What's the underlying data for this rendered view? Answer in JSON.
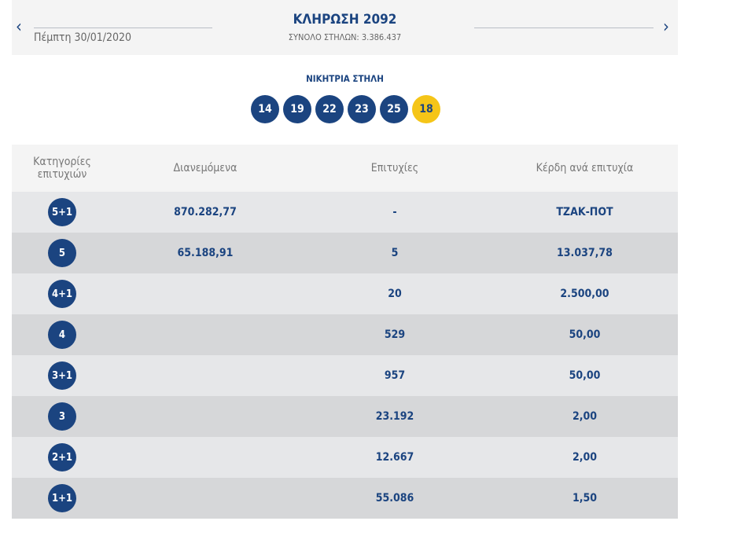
{
  "header": {
    "title": "ΚΛΗΡΩΣΗ 2092",
    "date": "Πέμπτη 30/01/2020",
    "total": "ΣΥΝΟΛΟ ΣΤΗΛΩΝ: 3.386.437",
    "prev": "‹",
    "next": "›"
  },
  "winning": {
    "label": "ΝΙΚΗΤΡΙΑ ΣΤΗΛΗ",
    "numbers": [
      "14",
      "19",
      "22",
      "23",
      "25"
    ],
    "bonus": "18"
  },
  "table": {
    "headers": [
      "Κατηγορίες επιτυχιών",
      "Διανεμόμενα",
      "Επιτυχίες",
      "Κέρδη ανά επιτυχία"
    ],
    "rows": [
      {
        "cat": "5+1",
        "dist": "870.282,77",
        "wins": "-",
        "prize": "ΤΖΑΚ-ΠΟΤ"
      },
      {
        "cat": "5",
        "dist": "65.188,91",
        "wins": "5",
        "prize": "13.037,78"
      },
      {
        "cat": "4+1",
        "dist": "",
        "wins": "20",
        "prize": "2.500,00"
      },
      {
        "cat": "4",
        "dist": "",
        "wins": "529",
        "prize": "50,00"
      },
      {
        "cat": "3+1",
        "dist": "",
        "wins": "957",
        "prize": "50,00"
      },
      {
        "cat": "3",
        "dist": "",
        "wins": "23.192",
        "prize": "2,00"
      },
      {
        "cat": "2+1",
        "dist": "",
        "wins": "12.667",
        "prize": "2,00"
      },
      {
        "cat": "1+1",
        "dist": "",
        "wins": "55.086",
        "prize": "1,50"
      }
    ]
  }
}
